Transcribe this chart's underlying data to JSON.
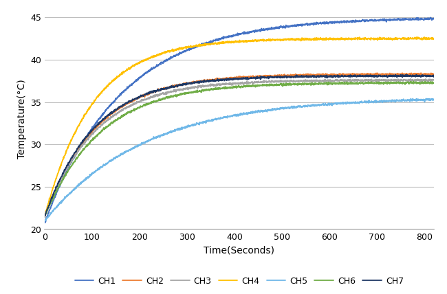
{
  "title": "",
  "xlabel": "Time(Seconds)",
  "ylabel": "Temperature(°C)",
  "xlim": [
    0,
    820
  ],
  "ylim": [
    20,
    46
  ],
  "yticks": [
    20,
    25,
    30,
    35,
    40,
    45
  ],
  "xticks": [
    0,
    100,
    200,
    300,
    400,
    500,
    600,
    700,
    800
  ],
  "channel_params": {
    "CH1": {
      "color": "#4472C4",
      "T_start": 21.0,
      "T_final": 45.0,
      "tau": 165,
      "dip": 0.3,
      "dip_tau": 18
    },
    "CH2": {
      "color": "#ED7D31",
      "T_start": 21.5,
      "T_final": 38.3,
      "tau": 110,
      "dip": 0.0,
      "dip_tau": 0
    },
    "CH3": {
      "color": "#A5A5A5",
      "T_start": 21.5,
      "T_final": 37.6,
      "tau": 108,
      "dip": 0.0,
      "dip_tau": 0
    },
    "CH4": {
      "color": "#FFC000",
      "T_start": 21.5,
      "T_final": 42.5,
      "tau": 100,
      "dip": 0.0,
      "dip_tau": 0
    },
    "CH5": {
      "color": "#70B8E8",
      "T_start": 21.0,
      "T_final": 35.6,
      "tau": 210,
      "dip": 0.0,
      "dip_tau": 0
    },
    "CH6": {
      "color": "#70AD47",
      "T_start": 21.5,
      "T_final": 37.3,
      "tau": 118,
      "dip": 0.0,
      "dip_tau": 0
    },
    "CH7": {
      "color": "#1F3864",
      "T_start": 21.5,
      "T_final": 38.1,
      "tau": 105,
      "dip": 0.0,
      "dip_tau": 0
    }
  },
  "channel_order": [
    "CH1",
    "CH2",
    "CH3",
    "CH4",
    "CH5",
    "CH6",
    "CH7"
  ],
  "background": "#FFFFFF",
  "grid_color": "#BEBEBE",
  "legend_fontsize": 9,
  "linewidth": 1.3
}
